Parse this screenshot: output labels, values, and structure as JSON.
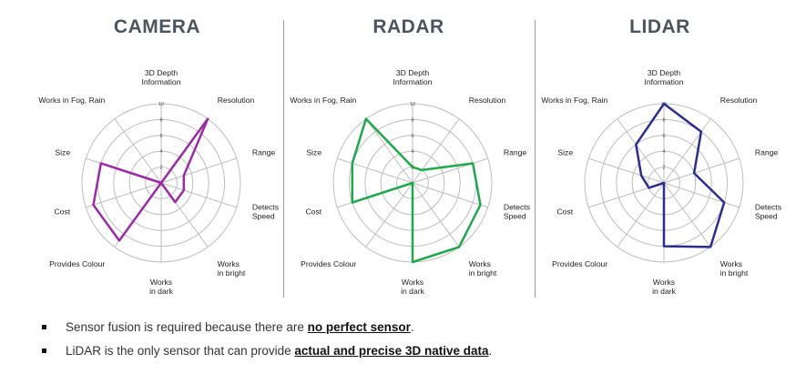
{
  "chart_data": [
    {
      "type": "radar",
      "title": "CAMERA",
      "axes": [
        "3D Depth Information",
        "Resolution",
        "Range",
        "Detects Speed",
        "Works in bright",
        "Works in dark",
        "Provides Colour",
        "Cost",
        "Size",
        "Works in Fog, Rain"
      ],
      "axis_label_lines": [
        [
          "3D Depth",
          "Information"
        ],
        [
          "Resolution"
        ],
        [
          "Range"
        ],
        [
          "Detects",
          "Speed"
        ],
        [
          "Works",
          "in bright"
        ],
        [
          "Works",
          "in dark"
        ],
        [
          "Provides Colour"
        ],
        [
          "Cost"
        ],
        [
          "Size"
        ],
        [
          "Works in Fog, Rain"
        ]
      ],
      "tick_labels": [
        "2",
        "4",
        "6",
        "8",
        "10"
      ],
      "rlim": [
        0,
        10
      ],
      "values": [
        0,
        10,
        3,
        3,
        3,
        0,
        9,
        9,
        8,
        0
      ],
      "color": "#9b2aa6"
    },
    {
      "type": "radar",
      "title": "RADAR",
      "axes": [
        "3D Depth Information",
        "Resolution",
        "Range",
        "Detects Speed",
        "Works in bright",
        "Works in dark",
        "Provides Colour",
        "Cost",
        "Size",
        "Works in Fog, Rain"
      ],
      "axis_label_lines": [
        [
          "3D Depth",
          "Information"
        ],
        [
          "Resolution"
        ],
        [
          "Range"
        ],
        [
          "Detects",
          "Speed"
        ],
        [
          "Works",
          "in bright"
        ],
        [
          "Works",
          "in dark"
        ],
        [
          "Provides Colour"
        ],
        [
          "Cost"
        ],
        [
          "Size"
        ],
        [
          "Works in Fog, Rain"
        ]
      ],
      "tick_labels": [
        "2",
        "4",
        "6",
        "8",
        "10"
      ],
      "rlim": [
        0,
        10
      ],
      "values": [
        2,
        2,
        8,
        9,
        10,
        10,
        0,
        8,
        8,
        10
      ],
      "color": "#1fa84a"
    },
    {
      "type": "radar",
      "title": "LIDAR",
      "axes": [
        "3D Depth Information",
        "Resolution",
        "Range",
        "Detects Speed",
        "Works in bright",
        "Works in dark",
        "Provides Colour",
        "Cost",
        "Size",
        "Works in Fog, Rain"
      ],
      "axis_label_lines": [
        [
          "3D Depth",
          "Information"
        ],
        [
          "Resolution"
        ],
        [
          "Range"
        ],
        [
          "Detects",
          "Speed"
        ],
        [
          "Works",
          "in bright"
        ],
        [
          "Works",
          "in dark"
        ],
        [
          "Provides Colour"
        ],
        [
          "Cost"
        ],
        [
          "Size"
        ],
        [
          "Works in Fog, Rain"
        ]
      ],
      "tick_labels": [
        "2",
        "4",
        "6",
        "8",
        "10"
      ],
      "rlim": [
        0,
        10
      ],
      "values": [
        10,
        8,
        4,
        8,
        10,
        8,
        0,
        2,
        3,
        6
      ],
      "color": "#2a2f8e"
    }
  ],
  "notes": [
    {
      "before": "Sensor fusion is required because there are ",
      "emph": "no perfect sensor",
      "after": "."
    },
    {
      "before": "LiDAR is the only sensor that can provide ",
      "emph": "actual and precise 3D native data",
      "after": "."
    }
  ]
}
